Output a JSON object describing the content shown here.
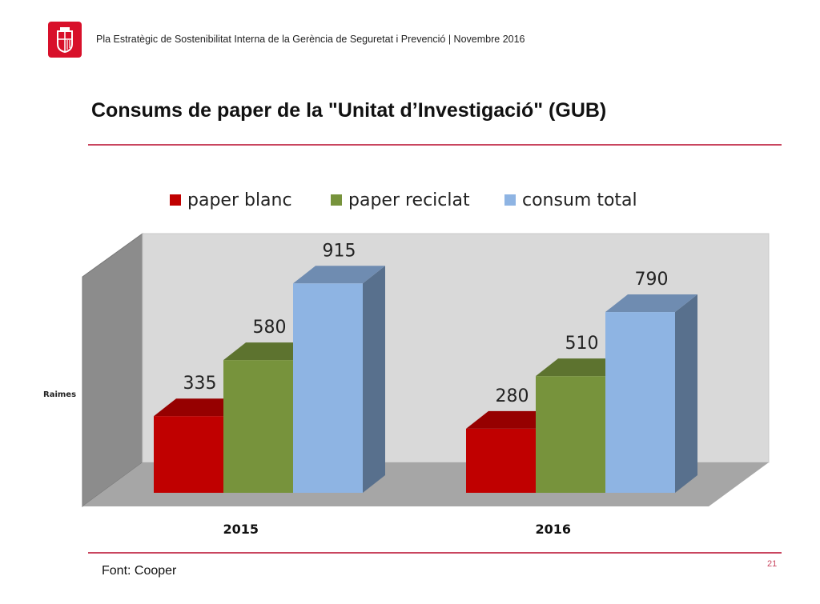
{
  "header": {
    "text": "Pla Estratègic de Sostenibilitat Interna de la Gerència de Seguretat i Prevenció | Novembre 2016",
    "logo_icon": "barcelona-coat-of-arms-icon",
    "logo_color": "#d8102a"
  },
  "page_title": "Consums de paper de la \"Unitat d’Investigació\" (GUB)",
  "footer": {
    "source": "Font: Cooper",
    "page_number": "21"
  },
  "chart_data": {
    "type": "bar",
    "ylabel": "Raimes",
    "categories": [
      "2015",
      "2016"
    ],
    "series": [
      {
        "name": "paper blanc",
        "values": [
          335,
          280
        ],
        "color": "#c00000"
      },
      {
        "name": "paper reciclat",
        "values": [
          580,
          510
        ],
        "color": "#77933c"
      },
      {
        "name": "consum total",
        "values": [
          915,
          790
        ],
        "color": "#8eb4e3"
      }
    ],
    "legend_position": "top",
    "grid": false
  }
}
